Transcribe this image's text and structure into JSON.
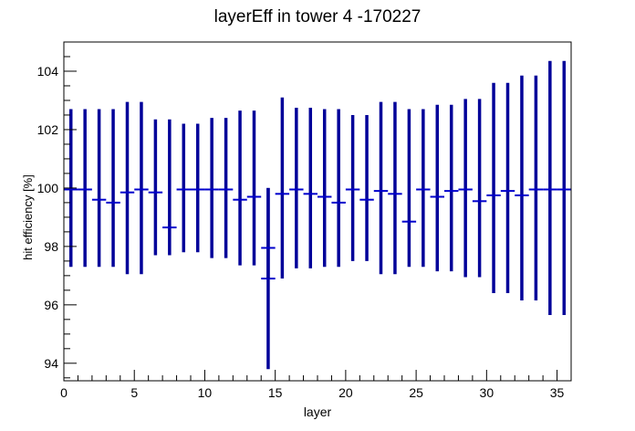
{
  "chart_data": {
    "type": "scatter",
    "title": "layerEff in tower 4 -170227",
    "xlabel": "layer",
    "ylabel": "hit efficiency [%]",
    "xlim": [
      0,
      36
    ],
    "ylim": [
      93.4,
      105.0
    ],
    "x_ticks": [
      0,
      5,
      10,
      15,
      20,
      25,
      30,
      35
    ],
    "y_ticks": [
      94,
      96,
      98,
      100,
      102,
      104
    ],
    "grid": false,
    "legend": "none",
    "series_color": "#0000cc",
    "errorbar_color": "#000099",
    "points": [
      {
        "x": 0.5,
        "y": 99.95,
        "lo": 97.3,
        "hi": 102.7
      },
      {
        "x": 1.5,
        "y": 99.95,
        "lo": 97.3,
        "hi": 102.7
      },
      {
        "x": 2.5,
        "y": 99.6,
        "lo": 97.3,
        "hi": 102.7
      },
      {
        "x": 3.5,
        "y": 99.5,
        "lo": 97.3,
        "hi": 102.7
      },
      {
        "x": 4.5,
        "y": 99.85,
        "lo": 97.05,
        "hi": 102.95
      },
      {
        "x": 5.5,
        "y": 99.95,
        "lo": 97.05,
        "hi": 102.95
      },
      {
        "x": 6.5,
        "y": 99.85,
        "lo": 97.7,
        "hi": 102.35
      },
      {
        "x": 7.5,
        "y": 98.65,
        "lo": 97.7,
        "hi": 102.35
      },
      {
        "x": 8.5,
        "y": 99.95,
        "lo": 97.8,
        "hi": 102.2
      },
      {
        "x": 9.5,
        "y": 99.95,
        "lo": 97.8,
        "hi": 102.2
      },
      {
        "x": 10.5,
        "y": 99.95,
        "lo": 97.6,
        "hi": 102.4
      },
      {
        "x": 11.5,
        "y": 99.95,
        "lo": 97.6,
        "hi": 102.4
      },
      {
        "x": 12.5,
        "y": 99.6,
        "lo": 97.35,
        "hi": 102.65
      },
      {
        "x": 13.5,
        "y": 99.7,
        "lo": 97.35,
        "hi": 102.65
      },
      {
        "x": 14.5,
        "y": 96.9,
        "lo": 93.8,
        "hi": 100.0
      },
      {
        "x": 14.5,
        "y": 97.95,
        "lo": 96.9,
        "hi": 100.0
      },
      {
        "x": 15.5,
        "y": 99.8,
        "lo": 96.9,
        "hi": 103.1
      },
      {
        "x": 16.5,
        "y": 99.95,
        "lo": 97.25,
        "hi": 102.75
      },
      {
        "x": 17.5,
        "y": 99.8,
        "lo": 97.25,
        "hi": 102.75
      },
      {
        "x": 18.5,
        "y": 99.7,
        "lo": 97.3,
        "hi": 102.7
      },
      {
        "x": 19.5,
        "y": 99.5,
        "lo": 97.3,
        "hi": 102.7
      },
      {
        "x": 20.5,
        "y": 99.95,
        "lo": 97.5,
        "hi": 102.5
      },
      {
        "x": 21.5,
        "y": 99.6,
        "lo": 97.5,
        "hi": 102.5
      },
      {
        "x": 22.5,
        "y": 99.9,
        "lo": 97.05,
        "hi": 102.95
      },
      {
        "x": 23.5,
        "y": 99.8,
        "lo": 97.05,
        "hi": 102.95
      },
      {
        "x": 24.5,
        "y": 98.85,
        "lo": 97.3,
        "hi": 102.7
      },
      {
        "x": 25.5,
        "y": 99.95,
        "lo": 97.3,
        "hi": 102.7
      },
      {
        "x": 26.5,
        "y": 99.7,
        "lo": 97.15,
        "hi": 102.85
      },
      {
        "x": 27.5,
        "y": 99.9,
        "lo": 97.15,
        "hi": 102.85
      },
      {
        "x": 28.5,
        "y": 99.95,
        "lo": 96.95,
        "hi": 103.05
      },
      {
        "x": 29.5,
        "y": 99.55,
        "lo": 96.95,
        "hi": 103.05
      },
      {
        "x": 30.5,
        "y": 99.75,
        "lo": 96.4,
        "hi": 103.6
      },
      {
        "x": 31.5,
        "y": 99.9,
        "lo": 96.4,
        "hi": 103.6
      },
      {
        "x": 32.5,
        "y": 99.75,
        "lo": 96.15,
        "hi": 103.85
      },
      {
        "x": 33.5,
        "y": 99.95,
        "lo": 96.15,
        "hi": 103.85
      },
      {
        "x": 34.5,
        "y": 99.95,
        "lo": 95.65,
        "hi": 104.35
      },
      {
        "x": 35.5,
        "y": 99.95,
        "lo": 95.65,
        "hi": 104.35
      }
    ]
  }
}
